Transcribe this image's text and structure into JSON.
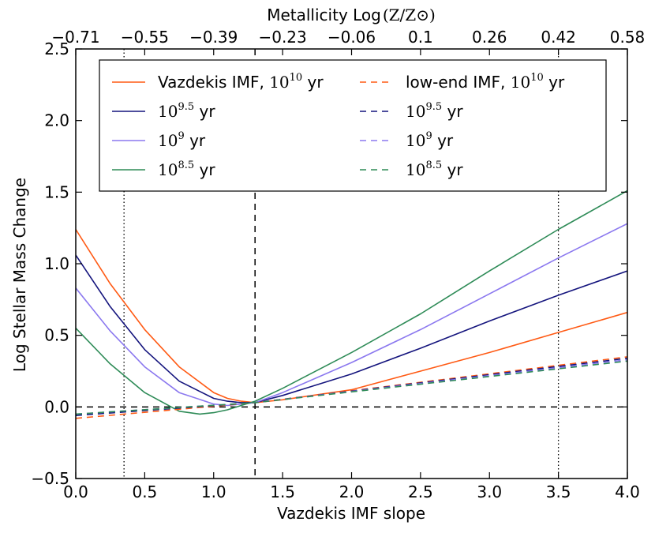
{
  "chart_data": {
    "type": "line",
    "xlabel": "Vazdekis IMF slope",
    "ylabel": "Log Stellar Mass Change",
    "xlim": [
      0.0,
      4.0
    ],
    "ylim": [
      -0.5,
      2.5
    ],
    "x_ticks": [
      "0.0",
      "0.5",
      "1.0",
      "1.5",
      "2.0",
      "2.5",
      "3.0",
      "3.5",
      "4.0"
    ],
    "y_ticks": [
      "−0.5",
      "0.0",
      "0.5",
      "1.0",
      "1.5",
      "2.0",
      "2.5"
    ],
    "top_axis": {
      "label_text": "Metallicity Log",
      "label_math": "(Z/Z⊙)",
      "tick_labels": [
        "−0.71",
        "−0.55",
        "−0.39",
        "−0.23",
        "−0.06",
        "0.1",
        "0.26",
        "0.42",
        "0.58"
      ]
    },
    "reference_lines": {
      "vertical_dashed_x": 1.3,
      "vertical_dotted_x": [
        0.35,
        3.5
      ],
      "horizontal_dashed_y": 0.0
    },
    "series": [
      {
        "name": "Vazdekis IMF, 10^10 yr",
        "color": "#ff5a14",
        "style": "solid",
        "x": [
          0,
          0.25,
          0.5,
          0.75,
          1.0,
          1.1,
          1.2,
          1.3,
          1.5,
          2.0,
          2.5,
          3.0,
          3.5,
          4.0
        ],
        "y": [
          1.24,
          0.86,
          0.54,
          0.28,
          0.1,
          0.06,
          0.04,
          0.03,
          0.05,
          0.12,
          0.25,
          0.38,
          0.52,
          0.66
        ]
      },
      {
        "name": "10^9.5 yr",
        "color": "#14147d",
        "style": "solid",
        "x": [
          0,
          0.25,
          0.5,
          0.75,
          1.0,
          1.1,
          1.2,
          1.3,
          1.5,
          2.0,
          2.5,
          3.0,
          3.5,
          4.0
        ],
        "y": [
          1.06,
          0.7,
          0.4,
          0.18,
          0.06,
          0.04,
          0.03,
          0.03,
          0.08,
          0.23,
          0.41,
          0.6,
          0.78,
          0.95
        ]
      },
      {
        "name": "10^9 yr",
        "color": "#8b78ef",
        "style": "solid",
        "x": [
          0,
          0.25,
          0.5,
          0.75,
          1.0,
          1.1,
          1.2,
          1.3,
          1.5,
          2.0,
          2.5,
          3.0,
          3.5,
          4.0
        ],
        "y": [
          0.83,
          0.53,
          0.28,
          0.1,
          0.02,
          0.01,
          0.02,
          0.03,
          0.1,
          0.31,
          0.54,
          0.79,
          1.04,
          1.28
        ]
      },
      {
        "name": "10^8.5 yr",
        "color": "#2e8b57",
        "style": "solid",
        "x": [
          0,
          0.25,
          0.5,
          0.75,
          0.9,
          1.0,
          1.1,
          1.2,
          1.3,
          1.5,
          2.0,
          2.5,
          3.0,
          3.5,
          4.0
        ],
        "y": [
          0.55,
          0.3,
          0.1,
          -0.03,
          -0.05,
          -0.04,
          -0.02,
          0.01,
          0.04,
          0.13,
          0.38,
          0.65,
          0.95,
          1.24,
          1.51
        ]
      },
      {
        "name": "low-end IMF, 10^10 yr",
        "color": "#ff5a14",
        "style": "dashed",
        "x": [
          0,
          1.3,
          4.0
        ],
        "y": [
          -0.08,
          0.03,
          0.35
        ]
      },
      {
        "name": "10^9.5 yr",
        "color": "#14147d",
        "style": "dashed",
        "x": [
          0,
          1.3,
          4.0
        ],
        "y": [
          -0.06,
          0.03,
          0.34
        ]
      },
      {
        "name": "10^9 yr",
        "color": "#8b78ef",
        "style": "dashed",
        "x": [
          0,
          1.3,
          4.0
        ],
        "y": [
          -0.05,
          0.03,
          0.33
        ]
      },
      {
        "name": "10^8.5 yr",
        "color": "#2e8b57",
        "style": "dashed",
        "x": [
          0,
          1.3,
          4.0
        ],
        "y": [
          -0.05,
          0.03,
          0.32
        ]
      }
    ],
    "legend": {
      "location": "top",
      "entries": [
        {
          "text": "Vazdekis IMF,",
          "base": "10",
          "exp": "10",
          "unit": "yr",
          "color": "#ff5a14",
          "style": "solid"
        },
        {
          "text": "",
          "base": "10",
          "exp": "9.5",
          "unit": "yr",
          "color": "#14147d",
          "style": "solid"
        },
        {
          "text": "",
          "base": "10",
          "exp": "9",
          "unit": "yr",
          "color": "#8b78ef",
          "style": "solid"
        },
        {
          "text": "",
          "base": "10",
          "exp": "8.5",
          "unit": "yr",
          "color": "#2e8b57",
          "style": "solid"
        },
        {
          "text": "low-end IMF,",
          "base": "10",
          "exp": "10",
          "unit": "yr",
          "color": "#ff5a14",
          "style": "dashed"
        },
        {
          "text": "",
          "base": "10",
          "exp": "9.5",
          "unit": "yr",
          "color": "#14147d",
          "style": "dashed"
        },
        {
          "text": "",
          "base": "10",
          "exp": "9",
          "unit": "yr",
          "color": "#8b78ef",
          "style": "dashed"
        },
        {
          "text": "",
          "base": "10",
          "exp": "8.5",
          "unit": "yr",
          "color": "#2e8b57",
          "style": "dashed"
        }
      ]
    }
  }
}
